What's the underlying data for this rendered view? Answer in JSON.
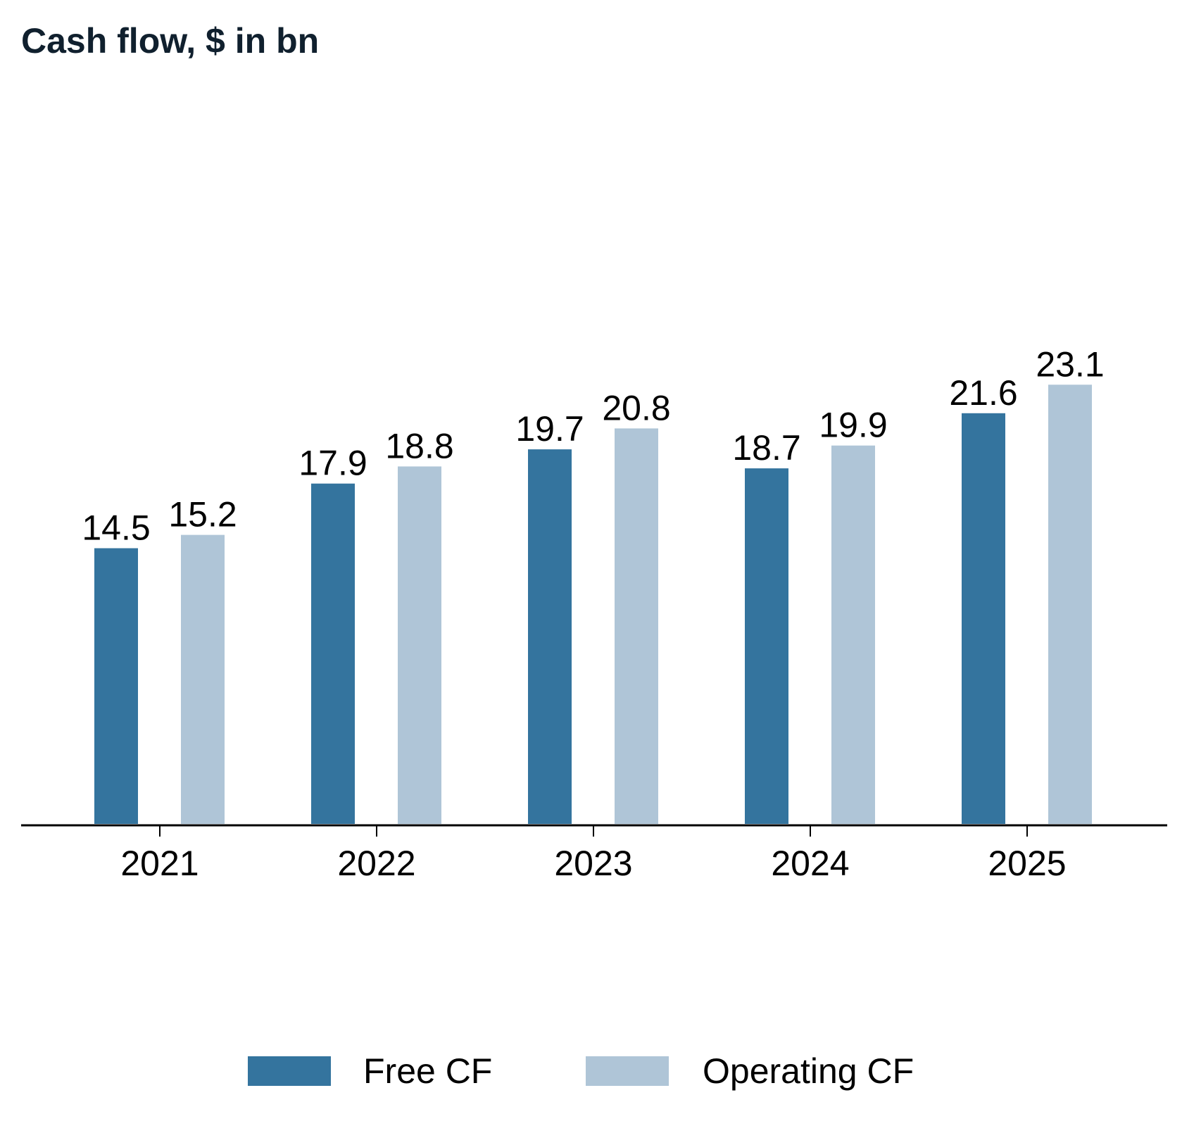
{
  "chart_data": {
    "type": "bar",
    "title": "Cash flow, $ in bn",
    "xlabel": "",
    "ylabel": "",
    "ylim": [
      0,
      24.05
    ],
    "grid": false,
    "legend_position": "bottom-center",
    "categories": [
      "2021",
      "2022",
      "2023",
      "2024",
      "2025"
    ],
    "series": [
      {
        "name": "Free CF",
        "color": "#34749e",
        "values": [
          14.5,
          17.9,
          19.7,
          18.7,
          21.6
        ],
        "labels": [
          "14.5",
          "17.9",
          "19.7",
          "18.7",
          "21.6"
        ]
      },
      {
        "name": "Operating CF",
        "color": "#afc5d7",
        "values": [
          15.2,
          18.8,
          20.8,
          19.9,
          23.1
        ],
        "labels": [
          "15.2",
          "18.8",
          "20.8",
          "19.9",
          "23.1"
        ]
      }
    ]
  }
}
